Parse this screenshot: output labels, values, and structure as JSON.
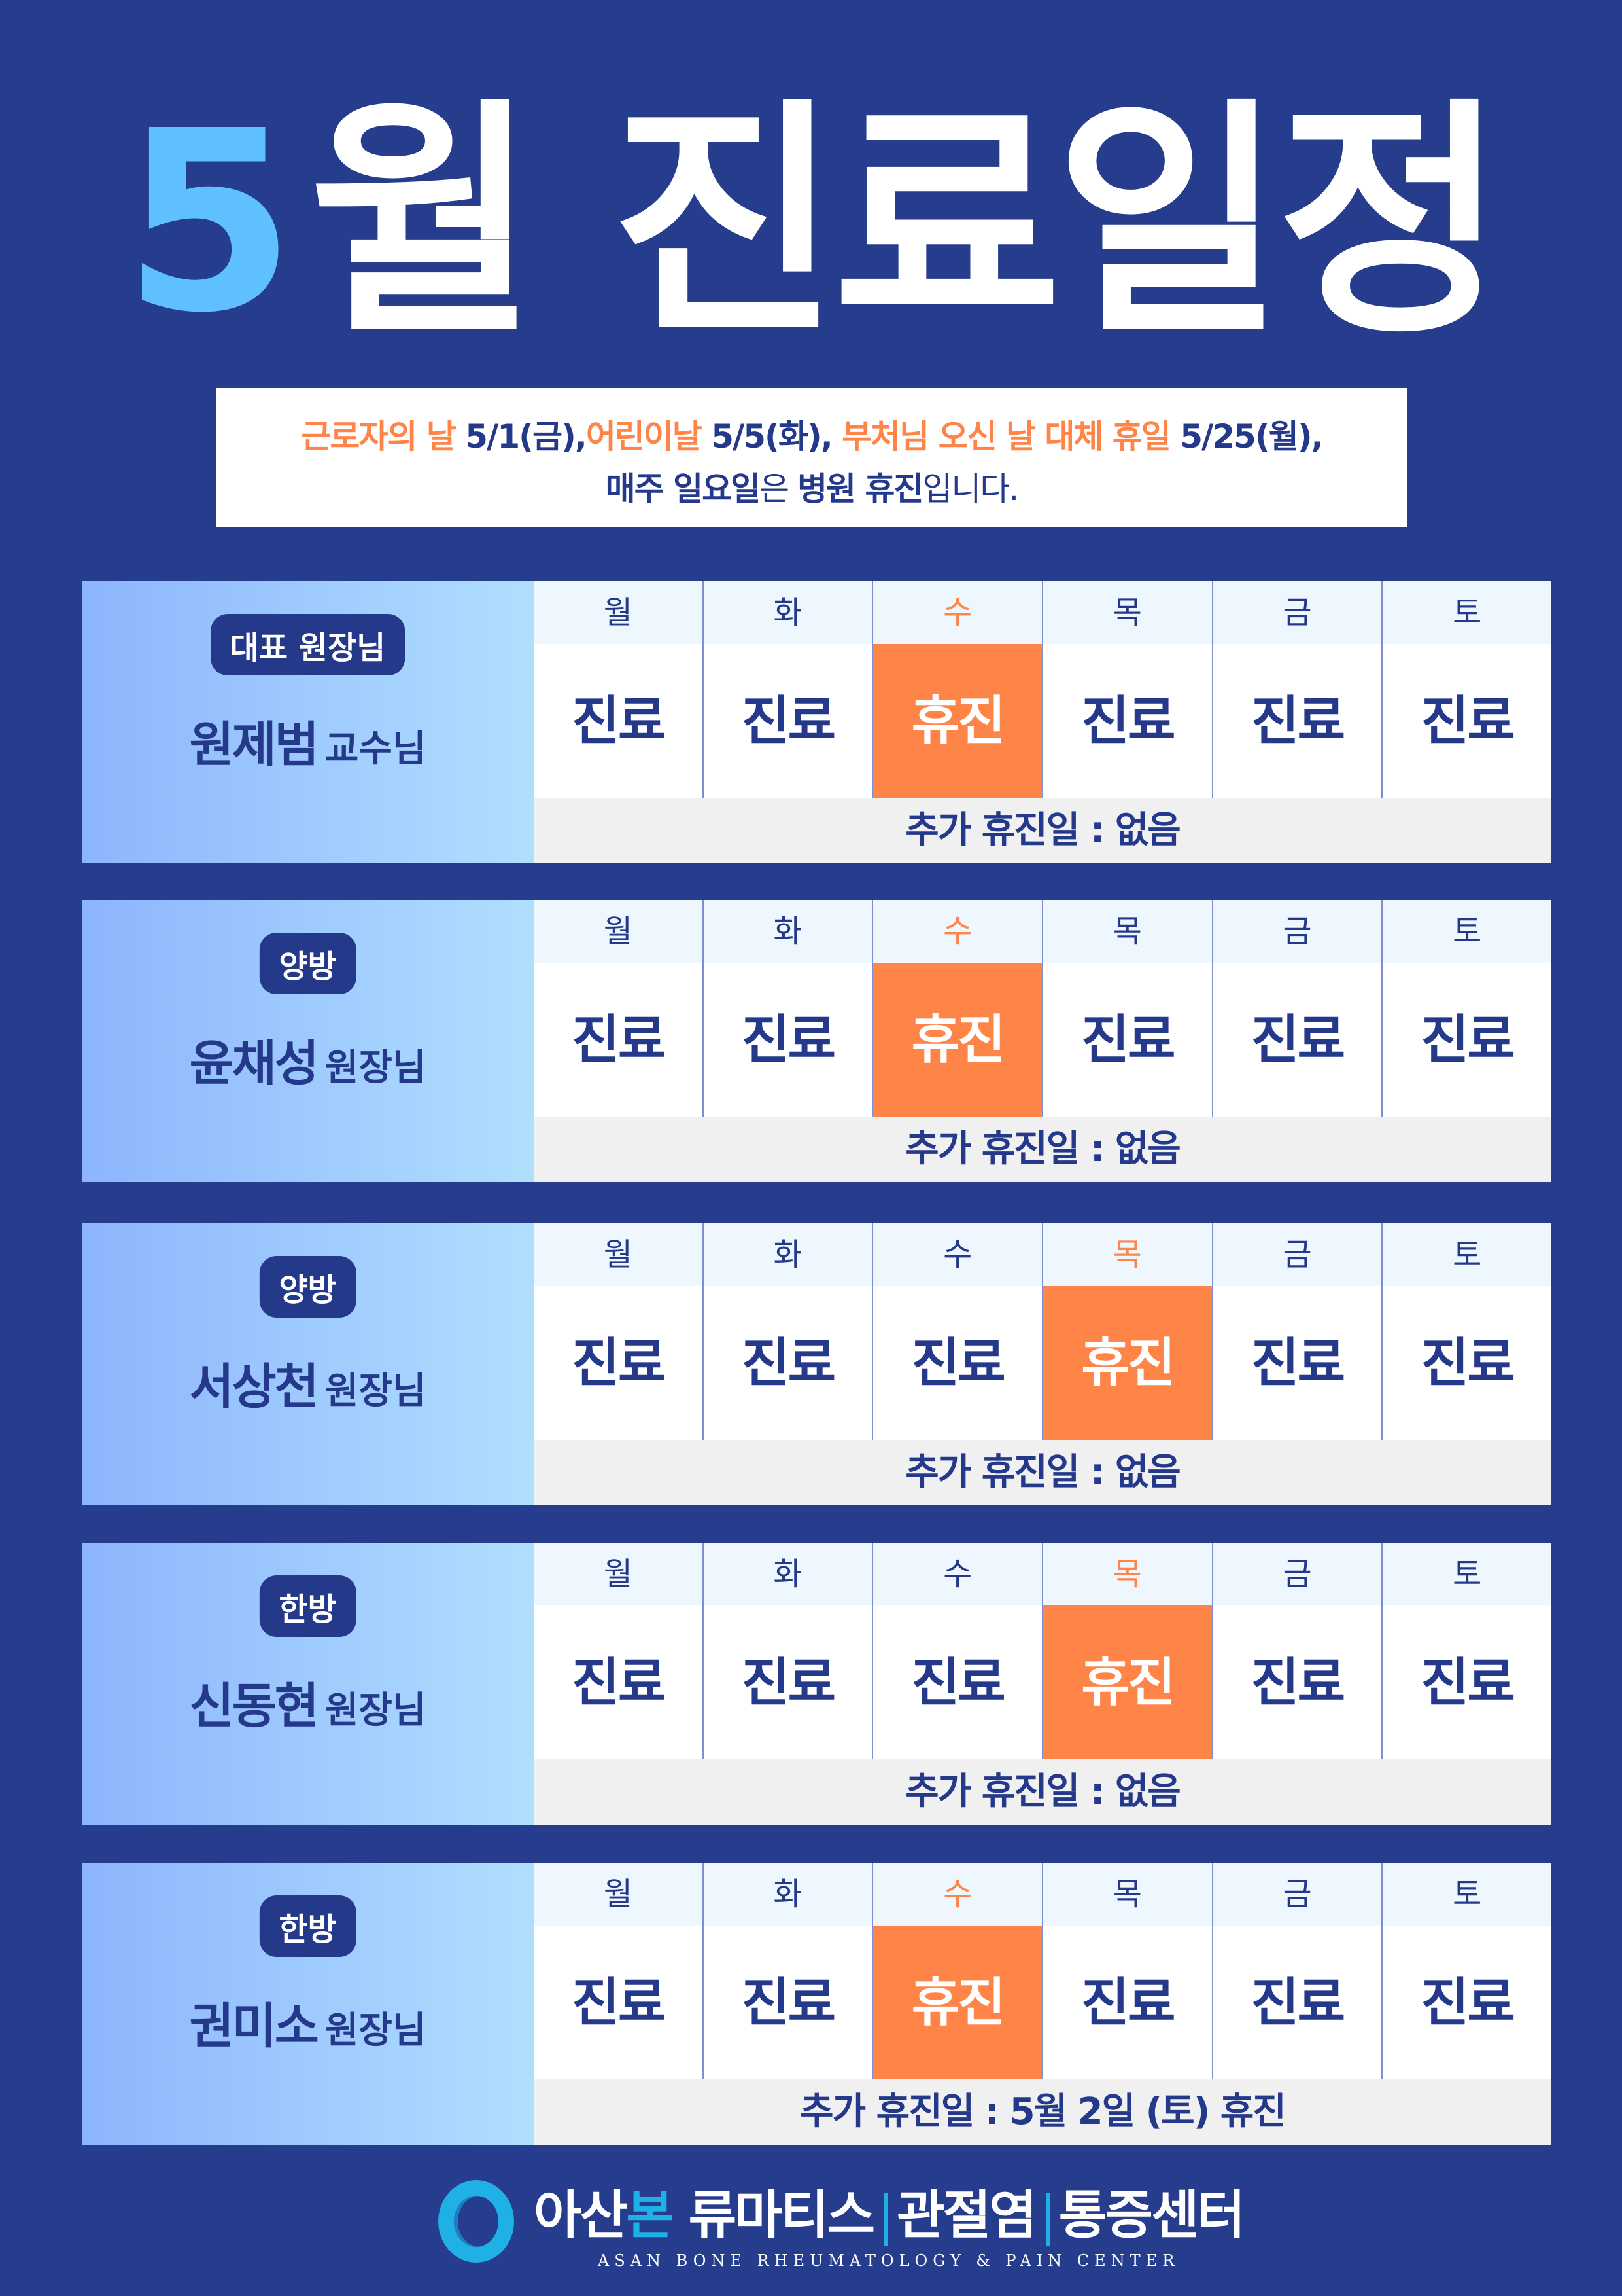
{
  "title": {
    "num": "5",
    "rest": "월 진료일정"
  },
  "notice": {
    "h1": "근로자의 날",
    "d1": " 5/1(금),",
    "h2": "어린이날",
    "d2": " 5/5(화), ",
    "h3": "부처님 오신 날 대체 휴일",
    "d3": " 5/25(월),",
    "l2a": "매주 일요일",
    "l2b": "은 ",
    "l2c": "병원 휴진",
    "l2d": "입니다."
  },
  "days": [
    "월",
    "화",
    "수",
    "목",
    "금",
    "토"
  ],
  "colors": {
    "background": "#263c8d",
    "off": "#ff8448",
    "accent": "#5fc0ff",
    "text": "#25398a"
  },
  "doctors": [
    {
      "badge": "대표 원장님",
      "name": "원제범",
      "title": "교수님",
      "off_index": 2,
      "status": [
        "진료",
        "진료",
        "휴진",
        "진료",
        "진료",
        "진료"
      ],
      "extra": "추가 휴진일 : 없음"
    },
    {
      "badge": "양방",
      "name": "윤채성",
      "title": "원장님",
      "off_index": 2,
      "status": [
        "진료",
        "진료",
        "휴진",
        "진료",
        "진료",
        "진료"
      ],
      "extra": "추가 휴진일 : 없음"
    },
    {
      "badge": "양방",
      "name": "서상천",
      "title": "원장님",
      "off_index": 3,
      "status": [
        "진료",
        "진료",
        "진료",
        "휴진",
        "진료",
        "진료"
      ],
      "extra": "추가 휴진일 : 없음"
    },
    {
      "badge": "한방",
      "name": "신동현",
      "title": "원장님",
      "off_index": 3,
      "status": [
        "진료",
        "진료",
        "진료",
        "휴진",
        "진료",
        "진료"
      ],
      "extra": "추가 휴진일 : 없음"
    },
    {
      "badge": "한방",
      "name": "권미소",
      "title": "원장님",
      "off_index": 2,
      "status": [
        "진료",
        "진료",
        "휴진",
        "진료",
        "진료",
        "진료"
      ],
      "extra": "추가 휴진일 : 5월 2일 (토) 휴진"
    }
  ],
  "logo": {
    "k1": "아산",
    "k2": "본",
    "k3": " 류마티스",
    "sep": "|",
    "k4": "관절염",
    "k5": "통증센터",
    "en": "ASAN BONE RHEUMATOLOGY & PAIN CENTER"
  }
}
